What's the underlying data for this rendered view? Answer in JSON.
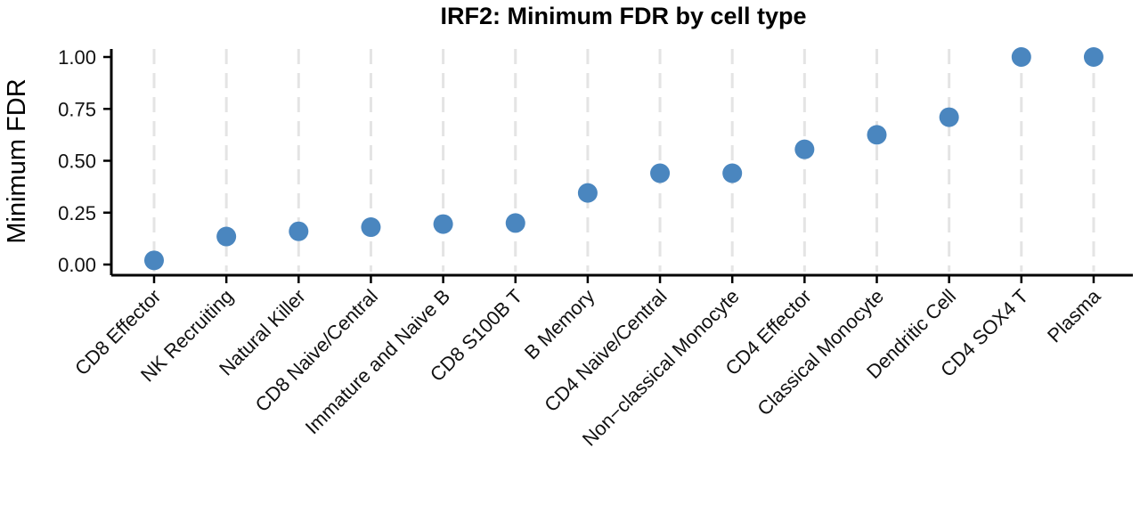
{
  "chart_data": {
    "type": "scatter",
    "title": "IRF2: Minimum FDR by cell type",
    "xlabel": "",
    "ylabel": "Minimum FDR",
    "ylim": [
      0,
      1
    ],
    "yticks": [
      "0.00",
      "0.25",
      "0.50",
      "0.75",
      "1.00"
    ],
    "ytick_values": [
      0,
      0.25,
      0.5,
      0.75,
      1.0
    ],
    "grid": "vertical dashed",
    "point_color": "#4a86bf",
    "categories": [
      "CD8 Effector",
      "NK Recruiting",
      "Natural Killer",
      "CD8 Naive/Central",
      "Immature and Naive B",
      "CD8 S100B T",
      "B Memory",
      "CD4 Naive/Central",
      "Non−classical Monocyte",
      "CD4 Effector",
      "Classical Monocyte",
      "Dendritic Cell",
      "CD4 SOX4 T",
      "Plasma"
    ],
    "values": [
      0.02,
      0.135,
      0.16,
      0.18,
      0.195,
      0.2,
      0.345,
      0.44,
      0.44,
      0.555,
      0.625,
      0.71,
      1.0,
      1.0
    ]
  }
}
